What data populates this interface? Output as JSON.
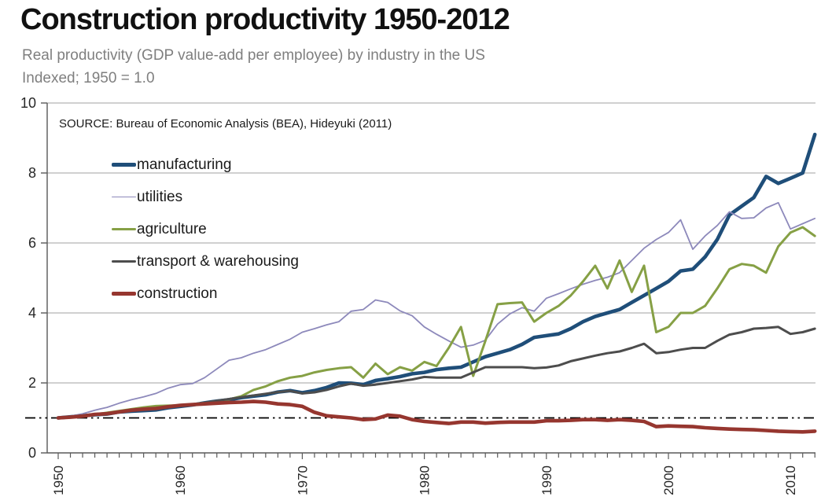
{
  "header": {
    "title": "Construction productivity 1950-2012",
    "subtitle_line1": "Real productivity (GDP value-add per employee) by industry in the US",
    "subtitle_line2": "Indexed; 1950 = 1.0"
  },
  "source_note": "SOURCE: Bureau of Economic Analysis (BEA), Hideyuki (2011)",
  "axis_style": {
    "grid_color": "#b3b3b3",
    "axis_color": "#595959",
    "tick_label_color": "#262626",
    "reference_line_color": "#000000"
  },
  "chart_data": {
    "type": "line",
    "title": "Construction productivity 1950-2012",
    "xlabel": "",
    "ylabel": "",
    "ylim": [
      0,
      10
    ],
    "yticks": [
      0,
      2,
      4,
      6,
      8,
      10
    ],
    "xticks_labeled": [
      1950,
      1960,
      1970,
      1980,
      1990,
      2000,
      2010
    ],
    "x_minor_tick_interval_years": 1,
    "grid": "horizontal",
    "legend_position": "top-left-inside",
    "reference_line": {
      "y": 1.0,
      "style": "dash-dot-dot",
      "color": "#000000"
    },
    "x": [
      1950,
      1951,
      1952,
      1953,
      1954,
      1955,
      1956,
      1957,
      1958,
      1959,
      1960,
      1961,
      1962,
      1963,
      1964,
      1965,
      1966,
      1967,
      1968,
      1969,
      1970,
      1971,
      1972,
      1973,
      1974,
      1975,
      1976,
      1977,
      1978,
      1979,
      1980,
      1981,
      1982,
      1983,
      1984,
      1985,
      1986,
      1987,
      1988,
      1989,
      1990,
      1991,
      1992,
      1993,
      1994,
      1995,
      1996,
      1997,
      1998,
      1999,
      2000,
      2001,
      2002,
      2003,
      2004,
      2005,
      2006,
      2007,
      2008,
      2009,
      2010,
      2011,
      2012
    ],
    "series": [
      {
        "name": "manufacturing",
        "color": "#1F4E79",
        "line_width": 4.6,
        "values": [
          1.0,
          1.03,
          1.06,
          1.09,
          1.11,
          1.17,
          1.19,
          1.21,
          1.23,
          1.29,
          1.33,
          1.37,
          1.43,
          1.48,
          1.52,
          1.58,
          1.62,
          1.66,
          1.74,
          1.78,
          1.72,
          1.78,
          1.87,
          2.0,
          1.99,
          1.95,
          2.07,
          2.12,
          2.18,
          2.26,
          2.3,
          2.38,
          2.42,
          2.45,
          2.6,
          2.75,
          2.85,
          2.95,
          3.1,
          3.3,
          3.35,
          3.4,
          3.55,
          3.75,
          3.9,
          4.0,
          4.1,
          4.3,
          4.5,
          4.7,
          4.9,
          5.2,
          5.25,
          5.6,
          6.1,
          6.8,
          7.05,
          7.3,
          7.9,
          7.7,
          7.85,
          8.0,
          9.1
        ]
      },
      {
        "name": "utilities",
        "color": "#8D89BB",
        "line_width": 1.8,
        "values": [
          1.0,
          1.05,
          1.12,
          1.22,
          1.3,
          1.42,
          1.52,
          1.6,
          1.7,
          1.85,
          1.95,
          1.98,
          2.15,
          2.4,
          2.65,
          2.72,
          2.85,
          2.95,
          3.1,
          3.25,
          3.45,
          3.55,
          3.66,
          3.75,
          4.05,
          4.1,
          4.37,
          4.3,
          4.06,
          3.92,
          3.6,
          3.39,
          3.2,
          3.02,
          3.08,
          3.22,
          3.68,
          3.97,
          4.15,
          4.05,
          4.42,
          4.55,
          4.69,
          4.82,
          4.93,
          5.02,
          5.15,
          5.5,
          5.85,
          6.1,
          6.3,
          6.66,
          5.82,
          6.2,
          6.5,
          6.89,
          6.7,
          6.72,
          7.0,
          7.15,
          6.4,
          6.55,
          6.7
        ]
      },
      {
        "name": "agriculture",
        "color": "#86A045",
        "line_width": 3.0,
        "values": [
          1.0,
          1.02,
          1.05,
          1.1,
          1.15,
          1.2,
          1.25,
          1.3,
          1.34,
          1.35,
          1.36,
          1.39,
          1.43,
          1.46,
          1.53,
          1.62,
          1.8,
          1.9,
          2.05,
          2.15,
          2.2,
          2.3,
          2.37,
          2.42,
          2.45,
          2.15,
          2.55,
          2.25,
          2.45,
          2.35,
          2.6,
          2.48,
          3.0,
          3.6,
          2.2,
          3.2,
          4.25,
          4.28,
          4.3,
          3.75,
          4.0,
          4.2,
          4.5,
          4.9,
          5.35,
          4.7,
          5.5,
          4.6,
          5.35,
          3.45,
          3.6,
          4.0,
          4.0,
          4.2,
          4.7,
          5.25,
          5.4,
          5.35,
          5.15,
          5.9,
          6.3,
          6.45,
          6.2
        ]
      },
      {
        "name": "transport & warehousing",
        "color": "#4D4D4D",
        "line_width": 3.0,
        "values": [
          1.0,
          1.04,
          1.07,
          1.11,
          1.13,
          1.17,
          1.21,
          1.25,
          1.28,
          1.32,
          1.34,
          1.37,
          1.43,
          1.49,
          1.54,
          1.59,
          1.64,
          1.69,
          1.74,
          1.77,
          1.7,
          1.73,
          1.8,
          1.9,
          1.98,
          1.92,
          1.95,
          2.0,
          2.05,
          2.1,
          2.17,
          2.15,
          2.15,
          2.15,
          2.3,
          2.45,
          2.45,
          2.45,
          2.45,
          2.42,
          2.44,
          2.5,
          2.62,
          2.7,
          2.78,
          2.85,
          2.9,
          3.0,
          3.12,
          2.85,
          2.88,
          2.95,
          3.0,
          3.0,
          3.2,
          3.38,
          3.45,
          3.55,
          3.57,
          3.6,
          3.4,
          3.45,
          3.55
        ]
      },
      {
        "name": "construction",
        "color": "#96362F",
        "line_width": 4.6,
        "values": [
          1.0,
          1.02,
          1.05,
          1.1,
          1.12,
          1.17,
          1.22,
          1.25,
          1.27,
          1.32,
          1.36,
          1.38,
          1.4,
          1.42,
          1.44,
          1.45,
          1.47,
          1.45,
          1.4,
          1.38,
          1.33,
          1.16,
          1.06,
          1.03,
          1.0,
          0.95,
          0.97,
          1.08,
          1.05,
          0.95,
          0.9,
          0.87,
          0.84,
          0.88,
          0.88,
          0.85,
          0.87,
          0.88,
          0.88,
          0.88,
          0.92,
          0.92,
          0.93,
          0.95,
          0.95,
          0.93,
          0.95,
          0.93,
          0.9,
          0.75,
          0.77,
          0.76,
          0.75,
          0.72,
          0.7,
          0.68,
          0.67,
          0.66,
          0.64,
          0.62,
          0.61,
          0.6,
          0.62
        ]
      }
    ]
  }
}
